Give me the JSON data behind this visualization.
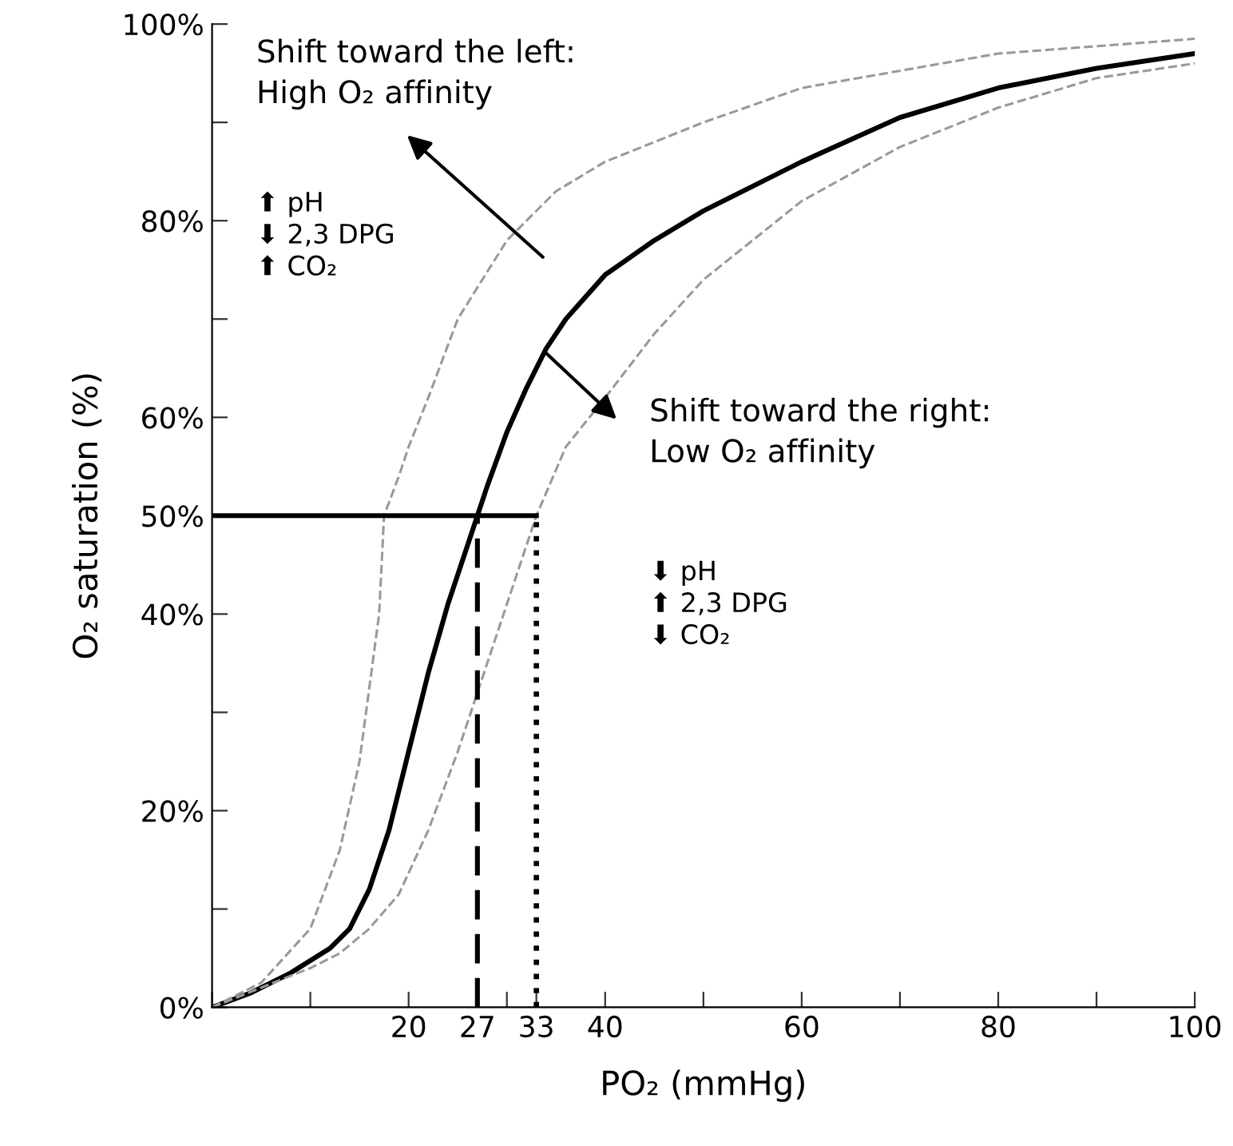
{
  "chart_data": {
    "type": "line",
    "xlabel": "PO₂ (mmHg)",
    "ylabel": "O₂ saturation (%)",
    "xlim": [
      0,
      100
    ],
    "ylim": [
      0,
      100
    ],
    "xticks": [
      {
        "value": 0,
        "label": null
      },
      {
        "value": 10,
        "label": null
      },
      20,
      {
        "value": 27,
        "label": "27"
      },
      {
        "value": 30,
        "label": null
      },
      {
        "value": 33,
        "label": "33"
      },
      40,
      {
        "value": 50,
        "label": null
      },
      60,
      {
        "value": 70,
        "label": null
      },
      80,
      {
        "value": 90,
        "label": null
      },
      100
    ],
    "yticks": [
      {
        "value": 0,
        "label": "0%"
      },
      {
        "value": 10,
        "label": null
      },
      {
        "value": 20,
        "label": "20%"
      },
      {
        "value": 30,
        "label": null
      },
      {
        "value": 40,
        "label": "40%"
      },
      {
        "value": 50,
        "label": "50%"
      },
      {
        "value": 60,
        "label": "60%"
      },
      {
        "value": 70,
        "label": null
      },
      {
        "value": 80,
        "label": "80%"
      },
      {
        "value": 90,
        "label": null
      },
      {
        "value": 100,
        "label": "100%"
      }
    ],
    "grid": false,
    "legend": false,
    "marker": "none",
    "series": [
      {
        "color": "#000000",
        "line_style": "solid",
        "x": [
          0,
          4,
          8,
          12,
          14,
          16,
          18,
          20,
          22,
          24,
          26,
          27,
          28,
          30,
          32,
          34,
          36,
          40,
          45,
          50,
          60,
          70,
          80,
          90,
          100
        ],
        "values": [
          0,
          1.5,
          3.5,
          6,
          8,
          12,
          18,
          26,
          34,
          41,
          47,
          50,
          53,
          58.5,
          63,
          67,
          70,
          74.5,
          78,
          81,
          86,
          90.5,
          93.5,
          95.5,
          97
        ]
      },
      {
        "color": "#999999",
        "line_style": "dashed",
        "x": [
          0,
          5,
          10,
          13,
          15,
          17,
          17.5,
          19,
          20,
          22,
          25,
          30,
          35,
          40,
          50,
          60,
          80,
          100
        ],
        "values": [
          0,
          2.5,
          8,
          16,
          25,
          40,
          50,
          54,
          57,
          62,
          70,
          78,
          83,
          86,
          90,
          93.5,
          97,
          98.5
        ]
      },
      {
        "color": "#999999",
        "line_style": "dashed",
        "x": [
          0,
          5,
          10,
          13,
          16,
          19,
          22,
          25,
          28,
          31,
          33,
          36,
          40,
          45,
          50,
          60,
          70,
          80,
          90,
          100
        ],
        "values": [
          0,
          2,
          4,
          5.5,
          8,
          11.5,
          18,
          26,
          35,
          44,
          50,
          57,
          62,
          68.5,
          74,
          82,
          87.5,
          91.5,
          94.5,
          96
        ]
      },
      {
        "color": "#000000",
        "line_style": "solid",
        "x": [
          0,
          33
        ],
        "values": [
          50,
          50
        ]
      },
      {
        "color": "#000000",
        "line_style": "dashed",
        "x": [
          27,
          27
        ],
        "values": [
          0,
          50
        ]
      },
      {
        "color": "#000000",
        "line_style": "dotted",
        "x": [
          33,
          33
        ],
        "values": [
          0,
          50
        ]
      }
    ],
    "annotations": [
      "Shift toward the left:\nHigh O₂ affinity",
      "⬆ pH\n⬇ 2,3 DPG\n⬆ CO₂",
      "Shift toward the right:\nLow O₂ affinity",
      "⬇ pH\n⬆ 2,3 DPG\n⬇ CO₂"
    ]
  }
}
